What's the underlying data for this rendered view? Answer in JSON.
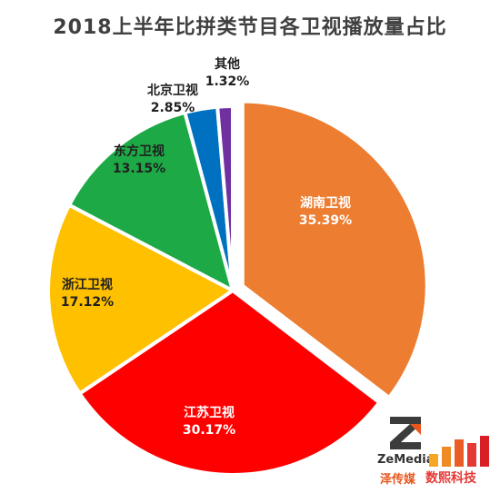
{
  "chart_data": {
    "type": "pie",
    "title": "2018上半年比拼类节目各卫视播放量占比",
    "slices": [
      {
        "label": "湖南卫视",
        "value": 35.39,
        "value_text": "35.39%",
        "color": "#ED7D31",
        "exploded": true
      },
      {
        "label": "江苏卫视",
        "value": 30.17,
        "value_text": "30.17%",
        "color": "#FF0000"
      },
      {
        "label": "浙江卫视",
        "value": 17.12,
        "value_text": "17.12%",
        "color": "#FFC000"
      },
      {
        "label": "东方卫视",
        "value": 13.15,
        "value_text": "13.15%",
        "color": "#1DAA46"
      },
      {
        "label": "北京卫视",
        "value": 2.85,
        "value_text": "2.85%",
        "color": "#0070C0"
      },
      {
        "label": "其他",
        "value": 1.32,
        "value_text": "1.32%",
        "color": "#7030A0"
      }
    ],
    "start": "12 o'clock",
    "direction": "clockwise"
  },
  "logos": {
    "zemedia_name": "ZeMedia",
    "zemedia_cn": "泽传媒",
    "shuxi_cn": "数熙科技"
  }
}
